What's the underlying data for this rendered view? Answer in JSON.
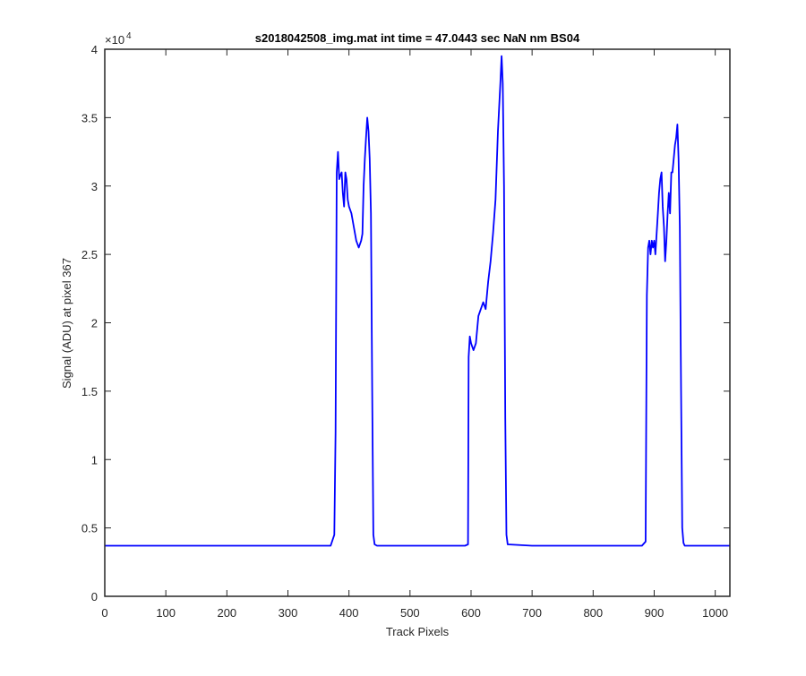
{
  "chart_data": {
    "type": "line",
    "title": "s2018042508_img.mat int time = 47.0443 sec  NaN nm BS04",
    "xlabel": "Track Pixels",
    "ylabel": "Signal (ADU) at pixel 367",
    "xlim": [
      0,
      1024
    ],
    "ylim": [
      0,
      40000
    ],
    "xticks": [
      0,
      100,
      200,
      300,
      400,
      500,
      600,
      700,
      800,
      900,
      1000
    ],
    "yticks": [
      0,
      5000,
      10000,
      15000,
      20000,
      25000,
      30000,
      35000,
      40000
    ],
    "ytick_labels": [
      "0",
      "0.5",
      "1",
      "1.5",
      "2",
      "2.5",
      "3",
      "3.5",
      "4"
    ],
    "y_exponent": {
      "base": "×10",
      "power": "4"
    },
    "grid": false,
    "line_color": "#0000ff",
    "series": [
      {
        "x": [
          0,
          50,
          100,
          150,
          200,
          250,
          300,
          350,
          370,
          376,
          378,
          380,
          382,
          384,
          386,
          388,
          390,
          392,
          394,
          396,
          398,
          400,
          404,
          408,
          412,
          416,
          420,
          422,
          424,
          426,
          428,
          430,
          432,
          434,
          436,
          438,
          440,
          442,
          446,
          460,
          500,
          560,
          590,
          595,
          596,
          598,
          600,
          604,
          608,
          612,
          616,
          620,
          624,
          628,
          632,
          636,
          640,
          644,
          648,
          650,
          652,
          654,
          656,
          658,
          660,
          700,
          750,
          800,
          850,
          880,
          886,
          888,
          890,
          892,
          894,
          896,
          898,
          900,
          902,
          904,
          906,
          908,
          910,
          912,
          914,
          916,
          918,
          920,
          922,
          924,
          926,
          928,
          930,
          932,
          934,
          936,
          938,
          940,
          942,
          944,
          946,
          948,
          950,
          952,
          956,
          980,
          1000,
          1024
        ],
        "values": [
          3700,
          3700,
          3700,
          3700,
          3700,
          3700,
          3700,
          3700,
          3700,
          4500,
          12000,
          31000,
          32500,
          30500,
          30800,
          31000,
          29500,
          28500,
          31000,
          30500,
          29000,
          28500,
          28000,
          27000,
          26000,
          25500,
          26000,
          26500,
          30000,
          32000,
          33500,
          35000,
          34000,
          32000,
          28000,
          15000,
          4500,
          3800,
          3700,
          3700,
          3700,
          3700,
          3700,
          3800,
          17500,
          19000,
          18500,
          18000,
          18500,
          20500,
          21000,
          21500,
          21000,
          23000,
          24500,
          26500,
          29000,
          34000,
          37500,
          39500,
          37500,
          30000,
          13000,
          4500,
          3800,
          3700,
          3700,
          3700,
          3700,
          3700,
          4000,
          22000,
          25500,
          26000,
          25000,
          26000,
          25500,
          26000,
          25000,
          26500,
          28000,
          29500,
          30500,
          31000,
          28500,
          27000,
          24500,
          26000,
          28000,
          29500,
          28000,
          31000,
          31000,
          32000,
          33000,
          33500,
          34500,
          32000,
          27000,
          15000,
          5000,
          3900,
          3700,
          3700,
          3700,
          3700,
          3700,
          3700
        ]
      }
    ]
  }
}
